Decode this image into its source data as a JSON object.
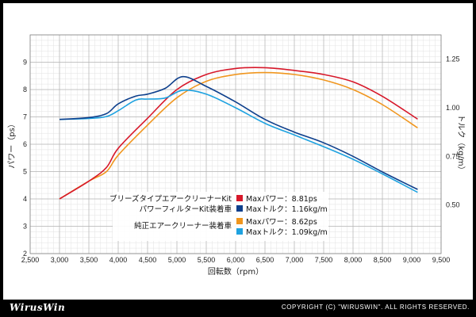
{
  "chart_data": {
    "type": "line",
    "xlabel": "回転数（rpm）",
    "ylabel_left": "パワー（ps）",
    "ylabel_right": "トルク（kg/m）",
    "xlim": [
      2500,
      9500
    ],
    "ylim_left": [
      2,
      10
    ],
    "ylim_right": [
      0.25,
      1.375
    ],
    "x_ticks": [
      "2,500",
      "3,000",
      "3,500",
      "4,000",
      "4,500",
      "5,000",
      "5,500",
      "6,000",
      "6,500",
      "7,000",
      "7,500",
      "8,000",
      "8,500",
      "9,000",
      "9,500"
    ],
    "y_left_ticks": [
      "2",
      "3",
      "4",
      "5",
      "6",
      "7",
      "8",
      "9"
    ],
    "y_right_ticks": [
      "0.50",
      "0.75",
      "1.00",
      "1.25"
    ],
    "grid": true,
    "legend_position": "center",
    "groups": [
      {
        "name": "ブリーズタイプエアークリーナーKit",
        "name2": "パワーフィルターKit装着車"
      },
      {
        "name": "純正エアークリーナー装着車"
      }
    ],
    "series": [
      {
        "name": "Maxパワー：8.81ps",
        "color": "#d7182a",
        "axis": "left",
        "group": 0,
        "x": [
          3000,
          3500,
          3800,
          4000,
          4500,
          5000,
          5500,
          6000,
          6500,
          7000,
          7500,
          8000,
          8500,
          9100
        ],
        "values": [
          4.0,
          4.65,
          5.15,
          5.85,
          6.95,
          8.0,
          8.55,
          8.77,
          8.8,
          8.7,
          8.55,
          8.28,
          7.75,
          6.92
        ]
      },
      {
        "name": "Maxトルク：1.16kg/m",
        "color": "#0d3f8c",
        "axis": "right",
        "group": 0,
        "x": [
          3000,
          3500,
          3800,
          4000,
          4300,
          4500,
          4800,
          5100,
          5500,
          6000,
          6500,
          7000,
          7500,
          8000,
          8500,
          9100
        ],
        "values": [
          0.94,
          0.95,
          0.97,
          1.02,
          1.06,
          1.07,
          1.1,
          1.16,
          1.11,
          1.03,
          0.94,
          0.875,
          0.82,
          0.75,
          0.67,
          0.58
        ]
      },
      {
        "name": "Maxパワー：8.62ps",
        "color": "#f0961e",
        "axis": "left",
        "group": 1,
        "x": [
          3000,
          3500,
          3800,
          4000,
          4500,
          5000,
          5500,
          6000,
          6500,
          7000,
          7500,
          8000,
          8500,
          9100
        ],
        "values": [
          4.0,
          4.65,
          5.0,
          5.6,
          6.7,
          7.7,
          8.3,
          8.55,
          8.62,
          8.55,
          8.35,
          8.0,
          7.45,
          6.6
        ]
      },
      {
        "name": "Maxトルク：1.09kg/m",
        "color": "#1ea2e0",
        "axis": "right",
        "group": 1,
        "x": [
          3000,
          3500,
          3800,
          4000,
          4300,
          4500,
          4800,
          5100,
          5500,
          6000,
          6500,
          7000,
          7500,
          8000,
          8500,
          9100
        ],
        "values": [
          0.94,
          0.945,
          0.955,
          0.985,
          1.04,
          1.045,
          1.05,
          1.09,
          1.07,
          1.0,
          0.92,
          0.86,
          0.8,
          0.735,
          0.66,
          0.565
        ]
      }
    ]
  },
  "footer": {
    "logo": "WirusWin",
    "copyright": "COPYRIGHT (C) \"WIRUSWIN\". ALL RIGHTS RESERVED."
  }
}
